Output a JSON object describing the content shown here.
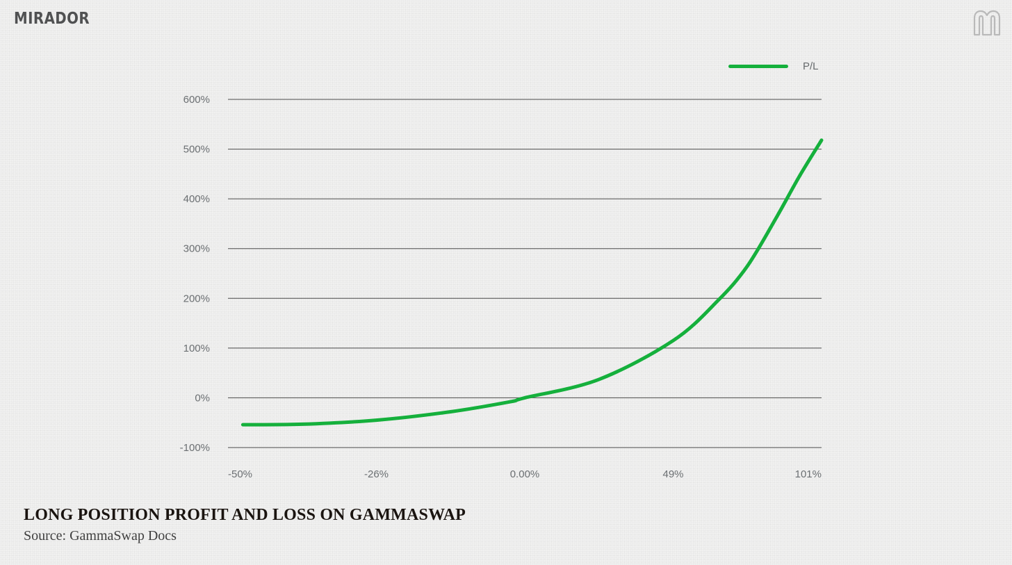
{
  "brand": {
    "wordmark": "MIRADOR",
    "mark_icon": "mirador-m-logo-icon"
  },
  "caption": {
    "title": "LONG POSITION PROFIT AND LOSS ON GAMMASWAP",
    "source": "Source: GammaSwap Docs"
  },
  "colors": {
    "series": "#15b03c",
    "grid": "#4a4a4a",
    "axis_text": "#6b6f72",
    "brand": "#505152"
  },
  "chart_data": {
    "type": "line",
    "title": "",
    "xlabel": "",
    "ylabel": "",
    "x_tick_labels": [
      "-50%",
      "-26%",
      "0.00%",
      "49%",
      "101%"
    ],
    "y_tick_values": [
      -100,
      0,
      100,
      200,
      300,
      400,
      500,
      600
    ],
    "y_tick_labels": [
      "-100%",
      "0%",
      "100%",
      "200%",
      "300%",
      "400%",
      "500%",
      "600%"
    ],
    "x_tick_values": [
      0,
      1,
      2,
      3,
      4
    ],
    "xlim": [
      0,
      4
    ],
    "ylim": [
      -100,
      600
    ],
    "grid": "horizontal",
    "legend": {
      "position": "top-right"
    },
    "series": [
      {
        "name": "P/L",
        "x": [
          0.1,
          0.5,
          1.0,
          1.5,
          1.9,
          2.0,
          2.5,
          3.0,
          3.3,
          3.5,
          3.7,
          3.85,
          4.0
        ],
        "y": [
          -54,
          -53,
          -45,
          -28,
          -8,
          0,
          37,
          115,
          195,
          265,
          365,
          445,
          518
        ]
      }
    ]
  }
}
